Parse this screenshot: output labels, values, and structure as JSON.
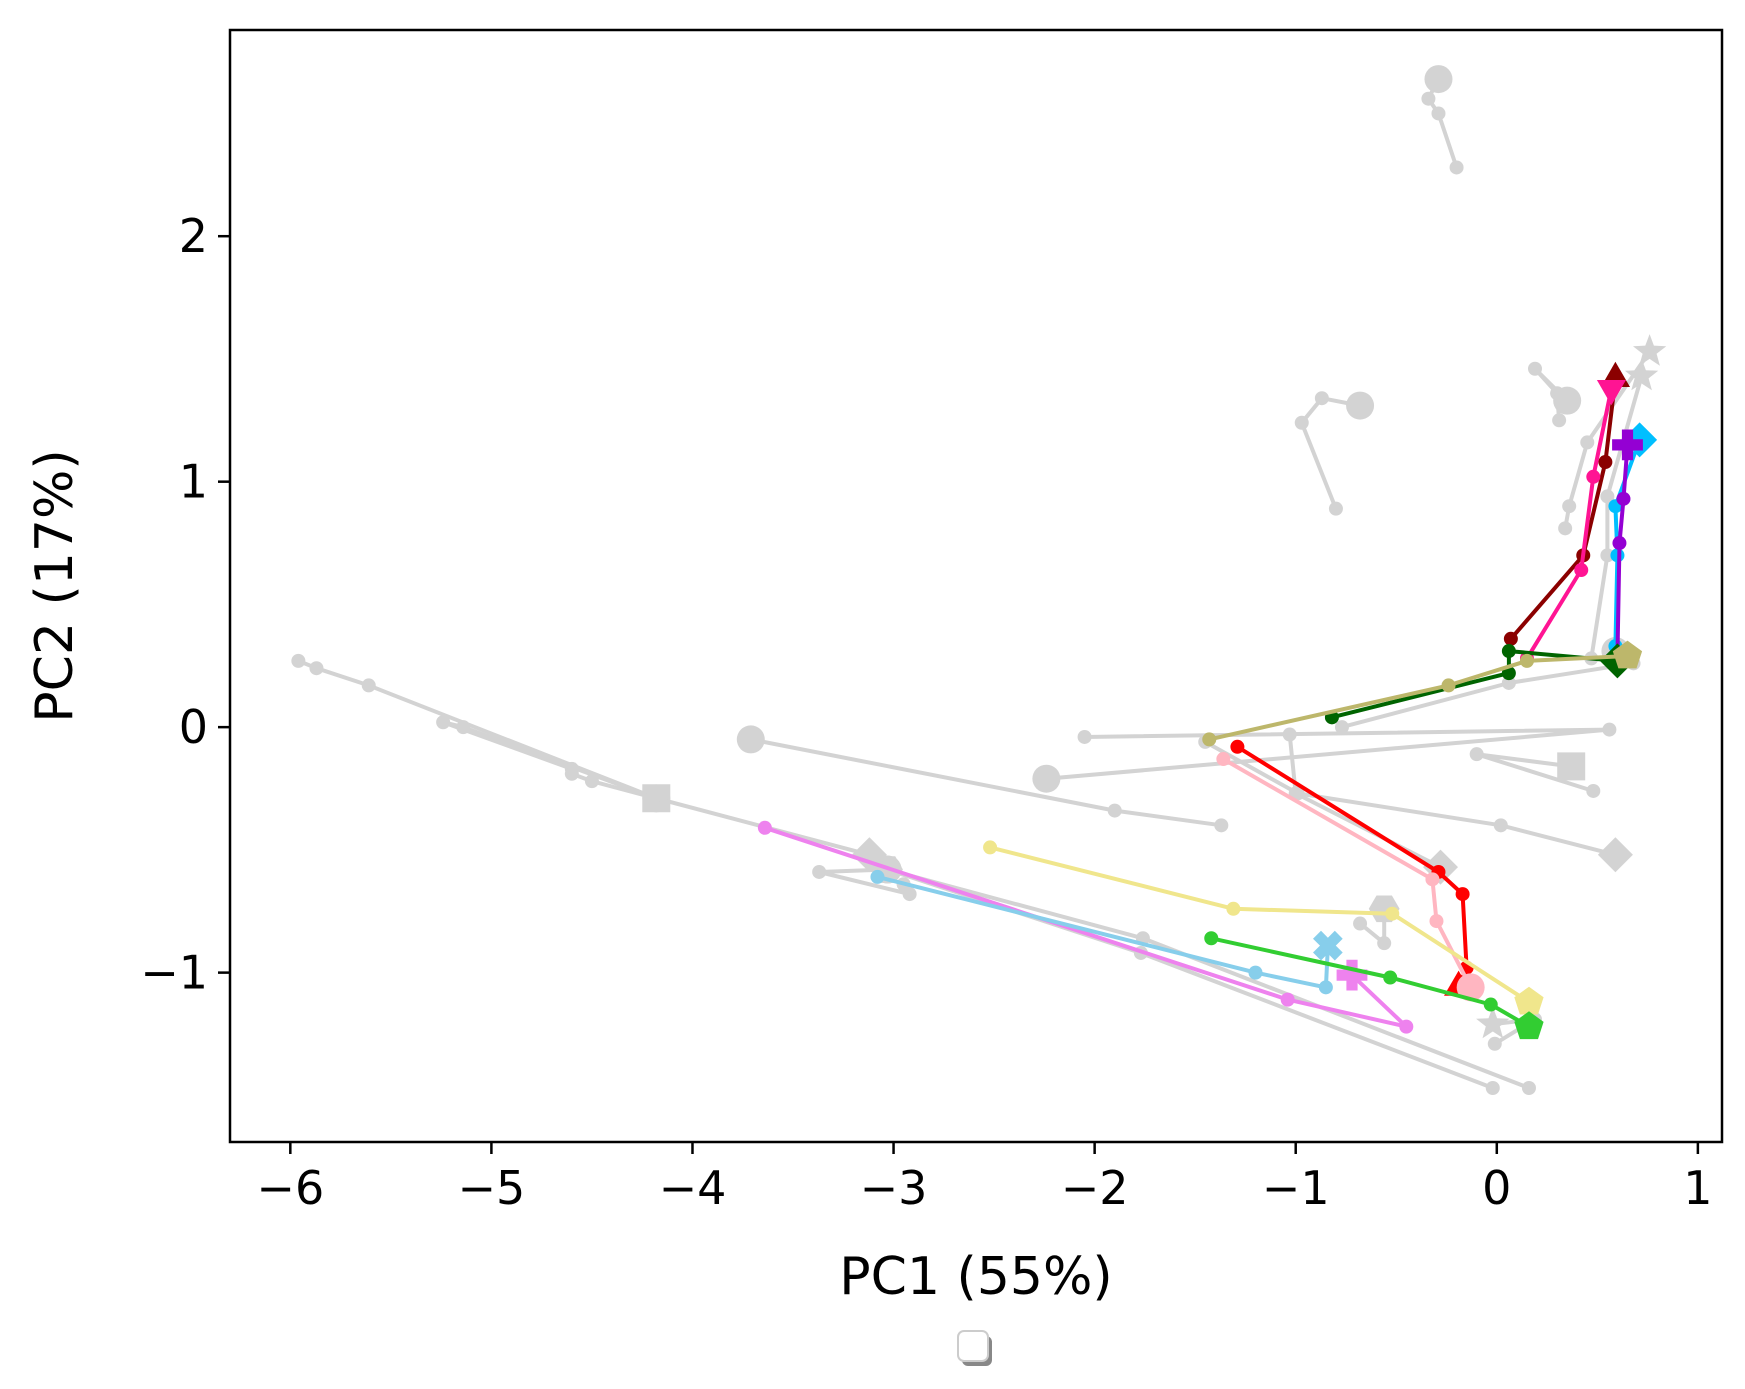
{
  "chart_data": {
    "type": "scatter",
    "title": "",
    "xlabel": "PC1 (55%)",
    "ylabel": "PC2 (17%)",
    "xlim": [
      -6.3,
      1.12
    ],
    "ylim": [
      -1.69,
      2.84
    ],
    "xticks": [
      -6,
      -5,
      -4,
      -3,
      -2,
      -1,
      0,
      1
    ],
    "xtick_labels": [
      "−6",
      "−5",
      "−4",
      "−3",
      "−2",
      "−1",
      "0",
      "1"
    ],
    "yticks": [
      -1,
      0,
      1,
      2
    ],
    "ytick_labels": [
      "−1",
      "0",
      "1",
      "2"
    ],
    "grid": false,
    "legend": "empty, bottom-center below axes",
    "colors": {
      "background": "#d3d3d3",
      "red": "#ff0000",
      "lightpink": "#ffb6c1",
      "violet": "#ee82ee",
      "skyblue": "#87ceeb",
      "khaki": "#f0e68c",
      "limegreen": "#32cd32",
      "darkred": "#8b0000",
      "deeppink": "#ff1493",
      "deepskyblue": "#00bfff",
      "darkviolet": "#9400d3",
      "darkgreen": "#006400",
      "darkkhaki": "#bdb76b"
    },
    "background_series": [
      {
        "marker": "circle",
        "points": [
          [
            -0.29,
            2.64
          ],
          [
            -0.34,
            2.56
          ],
          [
            -0.29,
            2.5
          ],
          [
            -0.2,
            2.28
          ]
        ]
      },
      {
        "marker": "circle",
        "points": [
          [
            -0.68,
            1.31
          ],
          [
            -0.87,
            1.34
          ],
          [
            -0.97,
            1.24
          ],
          [
            -0.8,
            0.89
          ]
        ]
      },
      {
        "marker": "circle",
        "points": [
          [
            0.35,
            1.33
          ],
          [
            0.19,
            1.46
          ],
          [
            0.3,
            1.36
          ],
          [
            0.31,
            1.25
          ]
        ]
      },
      {
        "marker": "star",
        "points": [
          [
            0.76,
            1.53
          ],
          [
            0.45,
            1.16
          ],
          [
            0.36,
            0.9
          ],
          [
            0.34,
            0.81
          ]
        ]
      },
      {
        "marker": "star",
        "points": [
          [
            0.72,
            1.43
          ],
          [
            0.55,
            0.94
          ],
          [
            0.55,
            0.7
          ],
          [
            0.47,
            0.28
          ]
        ]
      },
      {
        "marker": "square",
        "points": [
          [
            -4.18,
            -0.29
          ],
          [
            -5.61,
            0.17
          ],
          [
            -5.87,
            0.24
          ],
          [
            -5.96,
            0.27
          ]
        ]
      },
      {
        "marker": "circle",
        "points": [
          [
            -4.18,
            -0.29
          ],
          [
            -5.14,
            0.0
          ],
          [
            -5.24,
            0.02
          ],
          [
            -4.6,
            -0.17
          ]
        ]
      },
      {
        "marker": "square",
        "points": [
          [
            0.37,
            -0.16
          ],
          [
            -0.1,
            -0.11
          ],
          [
            0.48,
            -0.26
          ]
        ]
      },
      {
        "marker": "diamond",
        "points": [
          [
            0.59,
            -0.52
          ],
          [
            0.02,
            -0.4
          ],
          [
            -0.99,
            -0.27
          ],
          [
            -1.45,
            -0.06
          ]
        ]
      },
      {
        "marker": "circle",
        "points": [
          [
            -3.71,
            -0.05
          ],
          [
            -1.9,
            -0.34
          ],
          [
            -1.37,
            -0.4
          ]
        ]
      },
      {
        "marker": "circle",
        "points": [
          [
            -2.24,
            -0.21
          ],
          [
            0.56,
            -0.01
          ],
          [
            -2.05,
            -0.04
          ]
        ]
      },
      {
        "marker": "diamond",
        "points": [
          [
            -0.28,
            -0.57
          ],
          [
            -1.0,
            -0.27
          ],
          [
            -1.03,
            -0.03
          ]
        ]
      },
      {
        "marker": "diamond",
        "points": [
          [
            -3.12,
            -0.52
          ],
          [
            -4.5,
            -0.22
          ],
          [
            -4.6,
            -0.19
          ]
        ]
      },
      {
        "marker": "hexagon",
        "points": [
          [
            -3.03,
            -0.58
          ],
          [
            -3.37,
            -0.59
          ],
          [
            -2.92,
            -0.68
          ],
          [
            -2.95,
            -0.64
          ]
        ]
      },
      {
        "marker": "hexagon",
        "points": [
          [
            -0.56,
            -0.74
          ],
          [
            -0.56,
            -0.88
          ],
          [
            -0.68,
            -0.8
          ]
        ]
      },
      {
        "marker": "circle",
        "points": [
          [
            -3.03,
            -0.58
          ],
          [
            -1.76,
            -0.86
          ],
          [
            0.16,
            -1.47
          ]
        ]
      },
      {
        "marker": "circle",
        "points": [
          [
            -3.03,
            -0.58
          ],
          [
            -1.77,
            -0.92
          ],
          [
            -0.02,
            -1.47
          ]
        ]
      },
      {
        "marker": "star",
        "points": [
          [
            -0.02,
            -1.21
          ],
          [
            0.19,
            -1.19
          ],
          [
            -0.01,
            -1.29
          ]
        ]
      },
      {
        "marker": "circle",
        "points": [
          [
            0.59,
            0.31
          ],
          [
            0.68,
            0.26
          ],
          [
            0.06,
            0.18
          ],
          [
            -0.77,
            0.0
          ]
        ]
      }
    ],
    "series": [
      {
        "color": "#ff0000",
        "marker": "triangle-up",
        "points": [
          [
            -0.19,
            -1.06
          ],
          [
            -0.15,
            -0.98
          ],
          [
            -0.17,
            -0.68
          ],
          [
            -0.29,
            -0.59
          ],
          [
            -1.29,
            -0.08
          ]
        ]
      },
      {
        "color": "#ffb6c1",
        "marker": "circle",
        "points": [
          [
            -0.13,
            -1.06
          ],
          [
            -0.3,
            -0.79
          ],
          [
            -0.32,
            -0.62
          ],
          [
            -1.36,
            -0.13
          ]
        ]
      },
      {
        "color": "#ee82ee",
        "marker": "plus",
        "points": [
          [
            -0.72,
            -1.01
          ],
          [
            -0.45,
            -1.22
          ],
          [
            -1.04,
            -1.11
          ],
          [
            -3.64,
            -0.41
          ]
        ]
      },
      {
        "color": "#87ceeb",
        "marker": "x",
        "points": [
          [
            -0.84,
            -0.89
          ],
          [
            -0.85,
            -1.06
          ],
          [
            -1.2,
            -1.0
          ],
          [
            -3.08,
            -0.61
          ]
        ]
      },
      {
        "color": "#f0e68c",
        "marker": "pentagon",
        "points": [
          [
            0.16,
            -1.12
          ],
          [
            -0.52,
            -0.76
          ],
          [
            -1.31,
            -0.74
          ],
          [
            -2.52,
            -0.49
          ]
        ]
      },
      {
        "color": "#32cd32",
        "marker": "pentagon",
        "points": [
          [
            0.16,
            -1.22
          ],
          [
            -0.03,
            -1.13
          ],
          [
            -0.53,
            -1.02
          ],
          [
            -1.42,
            -0.86
          ]
        ]
      },
      {
        "color": "#8b0000",
        "marker": "triangle-up",
        "points": [
          [
            0.59,
            1.42
          ],
          [
            0.54,
            1.08
          ],
          [
            0.43,
            0.7
          ],
          [
            0.07,
            0.36
          ]
        ]
      },
      {
        "color": "#ff1493",
        "marker": "triangle-down",
        "points": [
          [
            0.57,
            1.38
          ],
          [
            0.48,
            1.02
          ],
          [
            0.42,
            0.64
          ],
          [
            0.15,
            0.28
          ]
        ]
      },
      {
        "color": "#00bfff",
        "marker": "diamond",
        "points": [
          [
            0.71,
            1.17
          ],
          [
            0.59,
            0.9
          ],
          [
            0.6,
            0.7
          ],
          [
            0.59,
            0.33
          ]
        ]
      },
      {
        "color": "#9400d3",
        "marker": "plus",
        "points": [
          [
            0.65,
            1.15
          ],
          [
            0.63,
            0.93
          ],
          [
            0.61,
            0.75
          ],
          [
            0.6,
            0.28
          ]
        ]
      },
      {
        "color": "#006400",
        "marker": "diamond",
        "points": [
          [
            0.6,
            0.27
          ],
          [
            0.06,
            0.31
          ],
          [
            0.06,
            0.22
          ],
          [
            -0.82,
            0.04
          ]
        ]
      },
      {
        "color": "#bdb76b",
        "marker": "pentagon",
        "points": [
          [
            0.65,
            0.29
          ],
          [
            0.15,
            0.27
          ],
          [
            -0.24,
            0.17
          ],
          [
            -1.43,
            -0.05
          ]
        ]
      }
    ]
  }
}
